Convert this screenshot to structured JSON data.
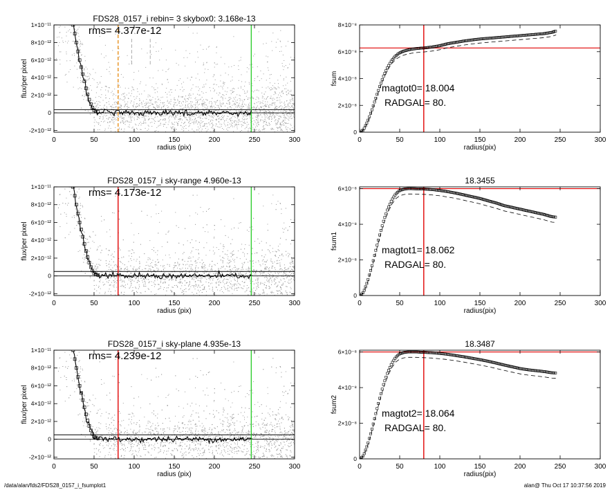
{
  "footer": {
    "left": "/data/alan/fds2/FDS28_0157_i_fsumplot1",
    "right": "alan@  Thu Oct 17 10:37:56 2019"
  },
  "colors": {
    "red": "#e00000",
    "green": "#2ecc2e",
    "orange": "#e8901c",
    "scatter": "#9a9a9a",
    "profile": "#000000"
  },
  "chart_data": [
    {
      "id": "left-1",
      "type": "scatter",
      "title": "FDS28_0157_i rebin= 3    skybox0:  3.168e-13",
      "annotation": "rms= 4.377e-12",
      "xlabel": "radius (pix)",
      "ylabel": "flux/per pixel",
      "xlim": [
        0,
        300
      ],
      "ylim": [
        -2.2e-12,
        1e-11
      ],
      "xticks": [
        0,
        50,
        100,
        150,
        200,
        250,
        300
      ],
      "xtick_labels": [
        "0",
        "50",
        "100",
        "150",
        "200",
        "250",
        "300"
      ],
      "yticks": [
        -2e-12,
        0,
        2e-12,
        4e-12,
        6e-12,
        8e-12,
        1e-11
      ],
      "ytick_labels": [
        "-2×10⁻¹²",
        "0",
        "2×10⁻¹²",
        "4×10⁻¹²",
        "6×10⁻¹²",
        "8×10⁻¹²",
        "1×10⁻¹¹"
      ],
      "hlines": [
        0,
        3.5e-13
      ],
      "vlines": [
        {
          "x": 80,
          "color": "orange",
          "style": "dashed"
        },
        {
          "x": 97,
          "color": "gray",
          "style": "dashed",
          "ymin": 5.5e-12,
          "ymax": 8.6e-12
        },
        {
          "x": 120,
          "color": "gray",
          "style": "dashed",
          "ymin": 5.5e-12,
          "ymax": 8.6e-12
        },
        {
          "x": 246,
          "color": "green",
          "style": "solid"
        }
      ],
      "profile": {
        "x": [
          24,
          26,
          28,
          30,
          32,
          34,
          36,
          38,
          40,
          42,
          44,
          46,
          48,
          50,
          52,
          55,
          60,
          65,
          70,
          75,
          80,
          85,
          90,
          95,
          100,
          110,
          120,
          130,
          140,
          150,
          160,
          170,
          180,
          190,
          200,
          210,
          220,
          230,
          240,
          246
        ],
        "y": [
          1e-11,
          9e-12,
          8e-12,
          7e-12,
          6e-12,
          5.2e-12,
          4.4e-12,
          3.6e-12,
          2.8e-12,
          2.1e-12,
          1.5e-12,
          1e-12,
          6e-13,
          3e-13,
          2e-13,
          1e-13,
          5e-14,
          2e-14,
          0,
          1e-14,
          0,
          -1e-14,
          0,
          1e-14,
          0,
          0,
          1e-14,
          0,
          -1e-14,
          0,
          0,
          1e-14,
          0,
          0,
          -1e-14,
          0,
          1e-14,
          0,
          0,
          0
        ]
      }
    },
    {
      "id": "right-1",
      "type": "line",
      "title": "",
      "xlabel": "radius(pix)",
      "ylabel": "fsum",
      "xlim": [
        0,
        300
      ],
      "ylim": [
        0,
        8e-08
      ],
      "xticks": [
        0,
        50,
        100,
        150,
        200,
        250,
        300
      ],
      "xtick_labels": [
        "0",
        "50",
        "100",
        "150",
        "200",
        "250",
        "300"
      ],
      "yticks": [
        0,
        2e-08,
        4e-08,
        6e-08,
        8e-08
      ],
      "ytick_labels": [
        "0",
        "2×10⁻⁸",
        "4×10⁻⁸",
        "6×10⁻⁸",
        "8×10⁻⁸"
      ],
      "annotations": [
        "magtot0=  18.004",
        "RADGAL=     80."
      ],
      "hline": 6.28e-08,
      "vline": 80,
      "curve": {
        "x": [
          1,
          5,
          10,
          15,
          20,
          25,
          30,
          35,
          40,
          45,
          50,
          55,
          60,
          65,
          70,
          75,
          80,
          90,
          100,
          110,
          120,
          130,
          140,
          150,
          160,
          170,
          180,
          190,
          200,
          210,
          220,
          230,
          240,
          245
        ],
        "y": [
          0,
          2e-09,
          8e-09,
          1.6e-08,
          2.5e-08,
          3.4e-08,
          4.2e-08,
          4.85e-08,
          5.35e-08,
          5.7e-08,
          5.92e-08,
          6.05e-08,
          6.13e-08,
          6.19e-08,
          6.23e-08,
          6.26e-08,
          6.28e-08,
          6.35e-08,
          6.45e-08,
          6.6e-08,
          6.7e-08,
          6.8e-08,
          6.88e-08,
          6.95e-08,
          7e-08,
          7.05e-08,
          7.1e-08,
          7.15e-08,
          7.2e-08,
          7.25e-08,
          7.3e-08,
          7.35e-08,
          7.45e-08,
          7.55e-08
        ]
      },
      "dashed_offset": -3e-09
    },
    {
      "id": "left-2",
      "type": "scatter",
      "title": "FDS28_0157_i sky-range  4.960e-13",
      "annotation": "rms= 4.173e-12",
      "xlabel": "radius (pix)",
      "ylabel": "flux/per pixel",
      "xlim": [
        0,
        300
      ],
      "ylim": [
        -2.2e-12,
        1e-11
      ],
      "xticks": [
        0,
        50,
        100,
        150,
        200,
        250,
        300
      ],
      "xtick_labels": [
        "0",
        "50",
        "100",
        "150",
        "200",
        "250",
        "300"
      ],
      "yticks": [
        -2e-12,
        0,
        2e-12,
        4e-12,
        6e-12,
        8e-12,
        1e-11
      ],
      "ytick_labels": [
        "-2×10⁻¹²",
        "0",
        "2×10⁻¹²",
        "4×10⁻¹²",
        "6×10⁻¹²",
        "8×10⁻¹²",
        "1×10⁻¹¹"
      ],
      "hlines": [
        0,
        5e-13
      ],
      "vlines": [
        {
          "x": 80,
          "color": "red",
          "style": "solid"
        },
        {
          "x": 246,
          "color": "green",
          "style": "solid"
        }
      ],
      "profile": {
        "x": [
          24,
          26,
          28,
          30,
          32,
          34,
          36,
          38,
          40,
          42,
          44,
          46,
          48,
          50,
          52,
          55,
          60,
          65,
          70,
          75,
          80,
          85,
          90,
          95,
          100,
          110,
          120,
          130,
          140,
          150,
          160,
          170,
          180,
          190,
          200,
          210,
          220,
          230,
          240,
          246
        ],
        "y": [
          1e-11,
          9e-12,
          8e-12,
          7e-12,
          6e-12,
          5.2e-12,
          4.4e-12,
          3.6e-12,
          2.8e-12,
          2.1e-12,
          1.5e-12,
          1e-12,
          6e-13,
          3e-13,
          2e-13,
          1e-13,
          5e-14,
          2e-14,
          0,
          1e-14,
          0,
          -1e-14,
          0,
          1e-14,
          0,
          0,
          1e-14,
          0,
          -1e-14,
          0,
          0,
          1e-14,
          0,
          0,
          -1e-14,
          0,
          1e-14,
          0,
          0,
          0
        ]
      }
    },
    {
      "id": "right-2",
      "type": "line",
      "title": "18.3455",
      "xlabel": "radius(pix)",
      "ylabel": "fsum1",
      "xlim": [
        0,
        300
      ],
      "ylim": [
        0,
        6.1e-08
      ],
      "xticks": [
        0,
        50,
        100,
        150,
        200,
        250,
        300
      ],
      "xtick_labels": [
        "0",
        "50",
        "100",
        "150",
        "200",
        "250",
        "300"
      ],
      "yticks": [
        0,
        2e-08,
        4e-08,
        6e-08
      ],
      "ytick_labels": [
        "0",
        "2×10⁻⁸",
        "4×10⁻⁸",
        "6×10⁻⁸"
      ],
      "annotations": [
        "magtot1=  18.062",
        "RADGAL=     80."
      ],
      "hline": 6e-08,
      "vline": 80,
      "curve": {
        "x": [
          1,
          5,
          10,
          15,
          20,
          25,
          30,
          35,
          40,
          45,
          50,
          55,
          60,
          65,
          70,
          80,
          90,
          100,
          110,
          120,
          130,
          140,
          150,
          160,
          170,
          180,
          190,
          200,
          210,
          220,
          230,
          240,
          245
        ],
        "y": [
          0,
          2e-09,
          8e-09,
          1.6e-08,
          2.5e-08,
          3.4e-08,
          4.2e-08,
          4.85e-08,
          5.35e-08,
          5.7e-08,
          5.9e-08,
          5.97e-08,
          6e-08,
          6e-08,
          5.99e-08,
          5.98e-08,
          5.95e-08,
          5.9e-08,
          5.83e-08,
          5.75e-08,
          5.65e-08,
          5.55e-08,
          5.45e-08,
          5.32e-08,
          5.2e-08,
          5.05e-08,
          4.95e-08,
          4.85e-08,
          4.75e-08,
          4.65e-08,
          4.55e-08,
          4.42e-08,
          4.4e-08
        ]
      },
      "dashed_offset": -3e-09
    },
    {
      "id": "left-3",
      "type": "scatter",
      "title": "FDS28_0157_i sky-plane  4.935e-13",
      "annotation": "rms= 4.239e-12",
      "xlabel": "radius (pix)",
      "ylabel": "flux/per pixel",
      "xlim": [
        0,
        300
      ],
      "ylim": [
        -2.2e-12,
        1e-11
      ],
      "xticks": [
        0,
        50,
        100,
        150,
        200,
        250,
        300
      ],
      "xtick_labels": [
        "0",
        "50",
        "100",
        "150",
        "200",
        "250",
        "300"
      ],
      "yticks": [
        -2e-12,
        0,
        2e-12,
        4e-12,
        6e-12,
        8e-12,
        1e-11
      ],
      "ytick_labels": [
        "-2×10⁻¹²",
        "0",
        "2×10⁻¹²",
        "4×10⁻¹²",
        "6×10⁻¹²",
        "8×10⁻¹²",
        "1×10⁻¹¹"
      ],
      "hlines": [
        0,
        5e-13
      ],
      "vlines": [
        {
          "x": 80,
          "color": "red",
          "style": "solid"
        },
        {
          "x": 246,
          "color": "green",
          "style": "solid"
        }
      ],
      "profile": {
        "x": [
          24,
          26,
          28,
          30,
          32,
          34,
          36,
          38,
          40,
          42,
          44,
          46,
          48,
          50,
          52,
          55,
          60,
          65,
          70,
          75,
          80,
          85,
          90,
          95,
          100,
          110,
          120,
          130,
          140,
          150,
          160,
          170,
          180,
          190,
          200,
          210,
          220,
          230,
          240,
          246
        ],
        "y": [
          1e-11,
          9e-12,
          8e-12,
          7e-12,
          6e-12,
          5.2e-12,
          4.4e-12,
          3.6e-12,
          2.8e-12,
          2.1e-12,
          1.5e-12,
          1e-12,
          6e-13,
          3e-13,
          2e-13,
          1e-13,
          5e-14,
          2e-14,
          0,
          1e-14,
          0,
          -1e-14,
          0,
          1e-14,
          0,
          0,
          1e-14,
          0,
          -1e-14,
          0,
          0,
          1e-14,
          0,
          0,
          -1e-14,
          0,
          1e-14,
          0,
          0,
          0
        ]
      }
    },
    {
      "id": "right-3",
      "type": "line",
      "title": "18.3487",
      "xlabel": "radius(pix)",
      "ylabel": "fsum2",
      "xlim": [
        0,
        300
      ],
      "ylim": [
        0,
        6.1e-08
      ],
      "xticks": [
        0,
        50,
        100,
        150,
        200,
        250,
        300
      ],
      "xtick_labels": [
        "0",
        "50",
        "100",
        "150",
        "200",
        "250",
        "300"
      ],
      "yticks": [
        0,
        2e-08,
        4e-08,
        6e-08
      ],
      "ytick_labels": [
        "0",
        "2×10⁻⁸",
        "4×10⁻⁸",
        "6×10⁻⁸"
      ],
      "annotations": [
        "magtot2=  18.064",
        "RADGAL=     80."
      ],
      "hline": 6e-08,
      "vline": 80,
      "curve": {
        "x": [
          1,
          5,
          10,
          15,
          20,
          25,
          30,
          35,
          40,
          45,
          50,
          55,
          60,
          65,
          70,
          80,
          90,
          100,
          110,
          120,
          130,
          140,
          150,
          160,
          170,
          180,
          190,
          200,
          210,
          220,
          230,
          240,
          245
        ],
        "y": [
          0,
          2e-09,
          8e-09,
          1.6e-08,
          2.5e-08,
          3.4e-08,
          4.2e-08,
          4.85e-08,
          5.35e-08,
          5.7e-08,
          5.9e-08,
          5.97e-08,
          6e-08,
          6e-08,
          6e-08,
          5.98e-08,
          5.96e-08,
          5.92e-08,
          5.87e-08,
          5.8e-08,
          5.73e-08,
          5.65e-08,
          5.57e-08,
          5.48e-08,
          5.38e-08,
          5.27e-08,
          5.17e-08,
          5.07e-08,
          5e-08,
          4.95e-08,
          4.9e-08,
          4.83e-08,
          4.82e-08
        ]
      },
      "dashed_offset": -3e-09
    }
  ]
}
